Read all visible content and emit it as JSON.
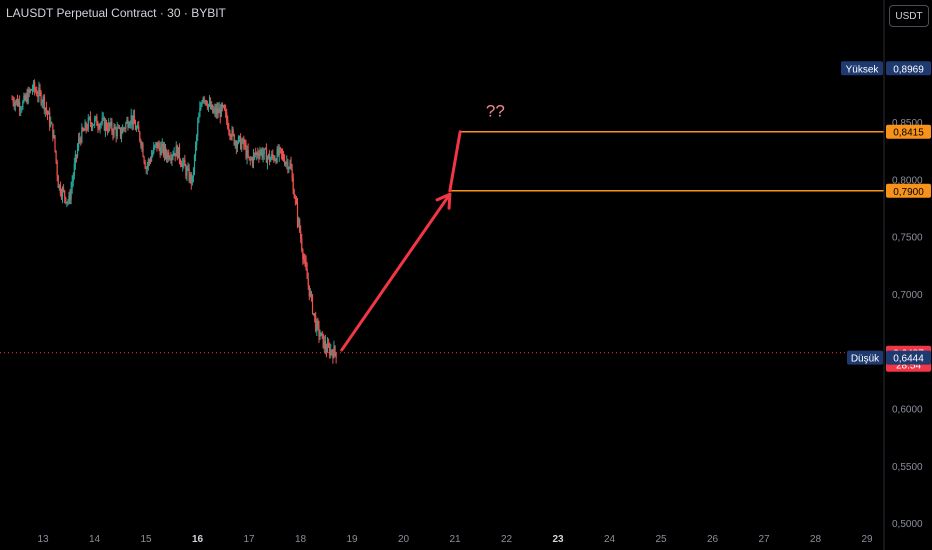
{
  "header": {
    "title": "LAUSDT Perpetual Contract · 30 · BYBIT",
    "currency": "USDT"
  },
  "colors": {
    "background": "#000000",
    "up": "#26a69a",
    "down": "#ef5350",
    "level": "#f7931a",
    "arrow": "#f23645",
    "high_label": "#1e3a70",
    "low_label": "#1e3a70",
    "price_label": "#f23645"
  },
  "chart_data": {
    "type": "candlestick",
    "interval": "30",
    "y_axis": {
      "ticks": [
        "0,8500",
        "0,8000",
        "0,7500",
        "0,7000",
        "0,6000",
        "0,5500",
        "0,5000"
      ],
      "tick_values": [
        0.85,
        0.8,
        0.75,
        0.7,
        0.6,
        0.55,
        0.5
      ],
      "range": [
        0.497,
        0.935
      ],
      "position": "right"
    },
    "x_axis": {
      "ticks": [
        "13",
        "14",
        "15",
        "16",
        "17",
        "18",
        "19",
        "20",
        "21",
        "22",
        "23",
        "24",
        "25",
        "26",
        "27",
        "28",
        "29"
      ],
      "bold_ticks": [
        "16",
        "23"
      ]
    },
    "price_path": [
      [
        12.4,
        0.87
      ],
      [
        12.6,
        0.865
      ],
      [
        12.8,
        0.88
      ],
      [
        13.0,
        0.87
      ],
      [
        13.2,
        0.84
      ],
      [
        13.3,
        0.795
      ],
      [
        13.5,
        0.78
      ],
      [
        13.7,
        0.835
      ],
      [
        13.9,
        0.85
      ],
      [
        14.1,
        0.85
      ],
      [
        14.3,
        0.845
      ],
      [
        14.5,
        0.84
      ],
      [
        14.7,
        0.855
      ],
      [
        14.9,
        0.835
      ],
      [
        15.0,
        0.81
      ],
      [
        15.2,
        0.83
      ],
      [
        15.4,
        0.822
      ],
      [
        15.6,
        0.825
      ],
      [
        15.8,
        0.805
      ],
      [
        15.9,
        0.798
      ],
      [
        16.0,
        0.845
      ],
      [
        16.1,
        0.875
      ],
      [
        16.3,
        0.858
      ],
      [
        16.5,
        0.86
      ],
      [
        16.7,
        0.835
      ],
      [
        16.9,
        0.83
      ],
      [
        17.0,
        0.815
      ],
      [
        17.2,
        0.825
      ],
      [
        17.4,
        0.818
      ],
      [
        17.6,
        0.822
      ],
      [
        17.8,
        0.812
      ],
      [
        17.9,
        0.78
      ],
      [
        18.1,
        0.72
      ],
      [
        18.3,
        0.672
      ],
      [
        18.5,
        0.652
      ],
      [
        18.7,
        0.6487
      ]
    ],
    "current_price": {
      "label": "0,6487",
      "value": 0.6487,
      "countdown": "28:54"
    },
    "high": {
      "label": "Yüksek",
      "price_label": "0,8969",
      "value": 0.8969
    },
    "low": {
      "label": "Düşük",
      "price_label": "0,6444",
      "value": 0.6444
    },
    "levels": [
      {
        "price_label": "0,8415",
        "value": 0.8415,
        "start_x": 21.1
      },
      {
        "price_label": "0,7900",
        "value": 0.79,
        "start_x": 20.9
      }
    ],
    "annotations": {
      "arrow": {
        "from": [
          18.8,
          0.651
        ],
        "to": [
          20.9,
          0.787
        ]
      },
      "segment": {
        "from": [
          20.9,
          0.79
        ],
        "to": [
          21.1,
          0.8415
        ]
      },
      "text": "??",
      "text_anchor": [
        21.6,
        0.855
      ]
    }
  }
}
